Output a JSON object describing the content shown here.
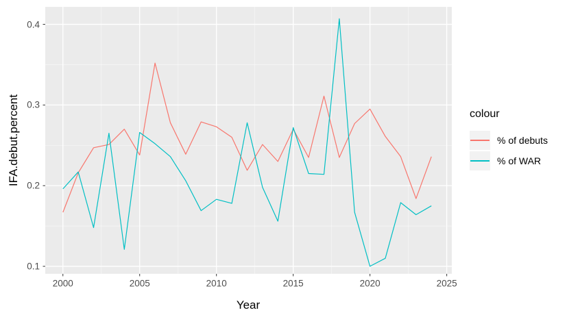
{
  "figure": {
    "background": "#ffffff"
  },
  "legend": {
    "title": "colour",
    "items": [
      {
        "label": "% of debuts",
        "color": "#F8766D"
      },
      {
        "label": "% of WAR",
        "color": "#00BFC4"
      }
    ]
  },
  "chart_data": {
    "type": "line",
    "title": "",
    "xlabel": "Year",
    "ylabel": "IFA.debut.percent",
    "legend_title": "colour",
    "legend_position": "right",
    "grid": true,
    "panel_bg": "#EBEBEB",
    "grid_color": "#FFFFFF",
    "tick_mark_color": "#333333",
    "axis_text_color": "#4d4d4d",
    "x": [
      2000,
      2001,
      2002,
      2003,
      2004,
      2005,
      2006,
      2007,
      2008,
      2009,
      2010,
      2011,
      2012,
      2013,
      2014,
      2015,
      2016,
      2017,
      2018,
      2019,
      2020,
      2021,
      2022,
      2023,
      2024
    ],
    "series": [
      {
        "name": "% of debuts",
        "color": "#F8766D",
        "values": [
          0.167,
          0.216,
          0.247,
          0.251,
          0.27,
          0.238,
          0.352,
          0.278,
          0.239,
          0.279,
          0.273,
          0.26,
          0.219,
          0.251,
          0.23,
          0.27,
          0.235,
          0.311,
          0.235,
          0.277,
          0.295,
          0.261,
          0.236,
          0.184,
          0.236
        ]
      },
      {
        "name": "% of WAR",
        "color": "#00BFC4",
        "values": [
          0.196,
          0.217,
          0.148,
          0.265,
          0.121,
          0.266,
          0.252,
          0.236,
          0.206,
          0.169,
          0.183,
          0.178,
          0.278,
          0.198,
          0.156,
          0.272,
          0.215,
          0.214,
          0.407,
          0.167,
          0.1,
          0.11,
          0.179,
          0.164,
          0.175
        ]
      }
    ],
    "x_ticks": [
      2000,
      2005,
      2010,
      2015,
      2020,
      2025
    ],
    "y_ticks": [
      0.1,
      0.2,
      0.3,
      0.4
    ],
    "x_domain": [
      1998.85,
      2025.33
    ],
    "y_domain": [
      0.0907,
      0.4217
    ]
  }
}
